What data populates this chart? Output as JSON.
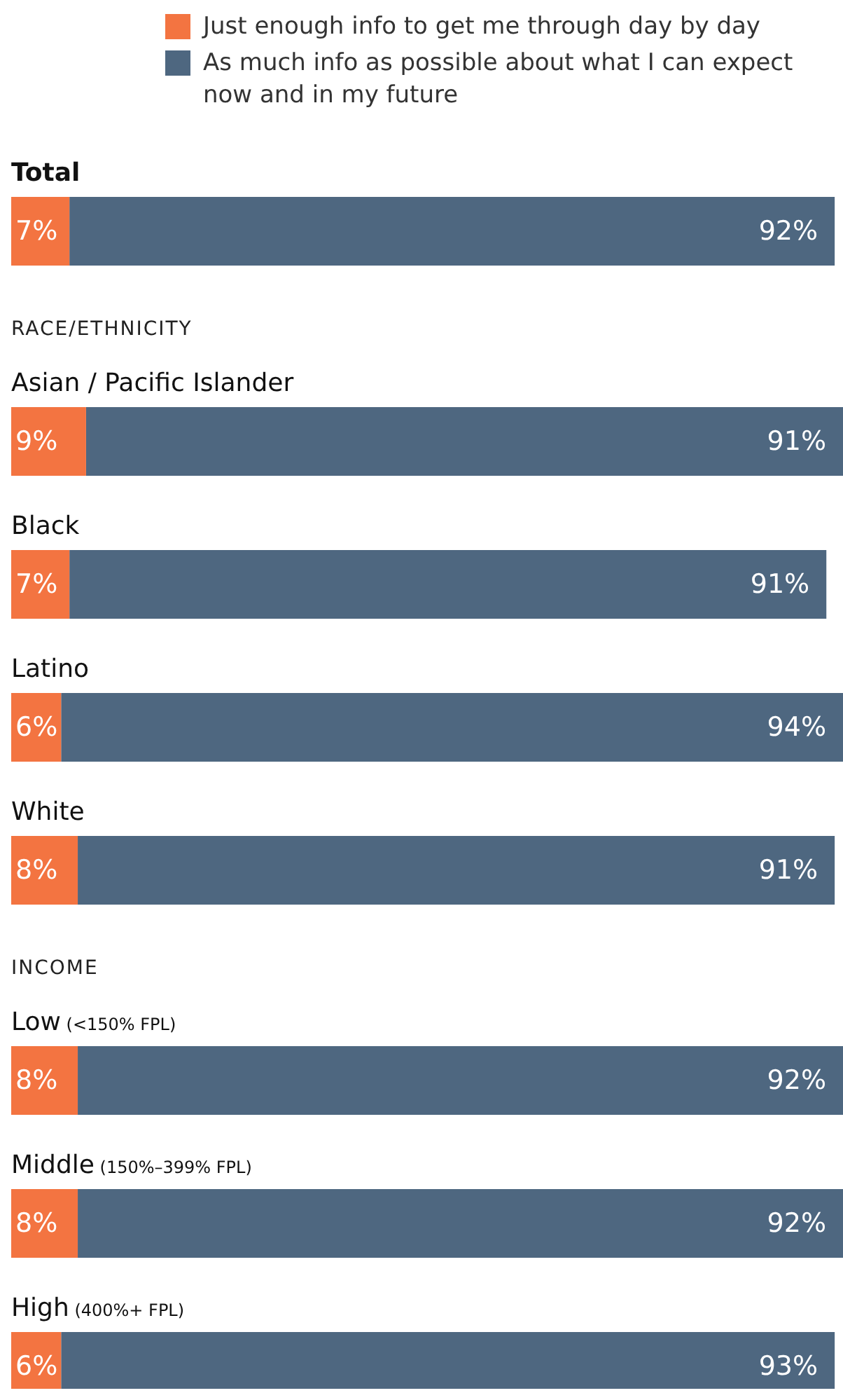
{
  "chart_data": {
    "type": "bar",
    "orientation": "horizontal",
    "stacked": true,
    "legend": "top",
    "tick_labels": false,
    "categories": [
      "Total",
      "Asian / Pacific Islander",
      "Black",
      "Latino",
      "White",
      "Low (<150% FPL)",
      "Middle (150%–399% FPL)",
      "High (400%+ FPL)"
    ],
    "series": [
      {
        "name": "Just enough info to get me through day by day",
        "color": "#f37441",
        "values": [
          7,
          9,
          7,
          6,
          8,
          8,
          8,
          6
        ],
        "value_labels": [
          "7%",
          "9%",
          "7%",
          "6%",
          "8%",
          "8%",
          "8%",
          "6%"
        ]
      },
      {
        "name": "As much info as possible about what I can expect now and in my future",
        "color": "#4e6780",
        "values": [
          92,
          91,
          91,
          94,
          91,
          92,
          92,
          93
        ],
        "value_labels": [
          "92%",
          "91%",
          "91%",
          "94%",
          "91%",
          "92%",
          "92%",
          "93%"
        ]
      }
    ],
    "annotations": [
      "RACE/ETHNICITY",
      "INCOME"
    ]
  }
}
